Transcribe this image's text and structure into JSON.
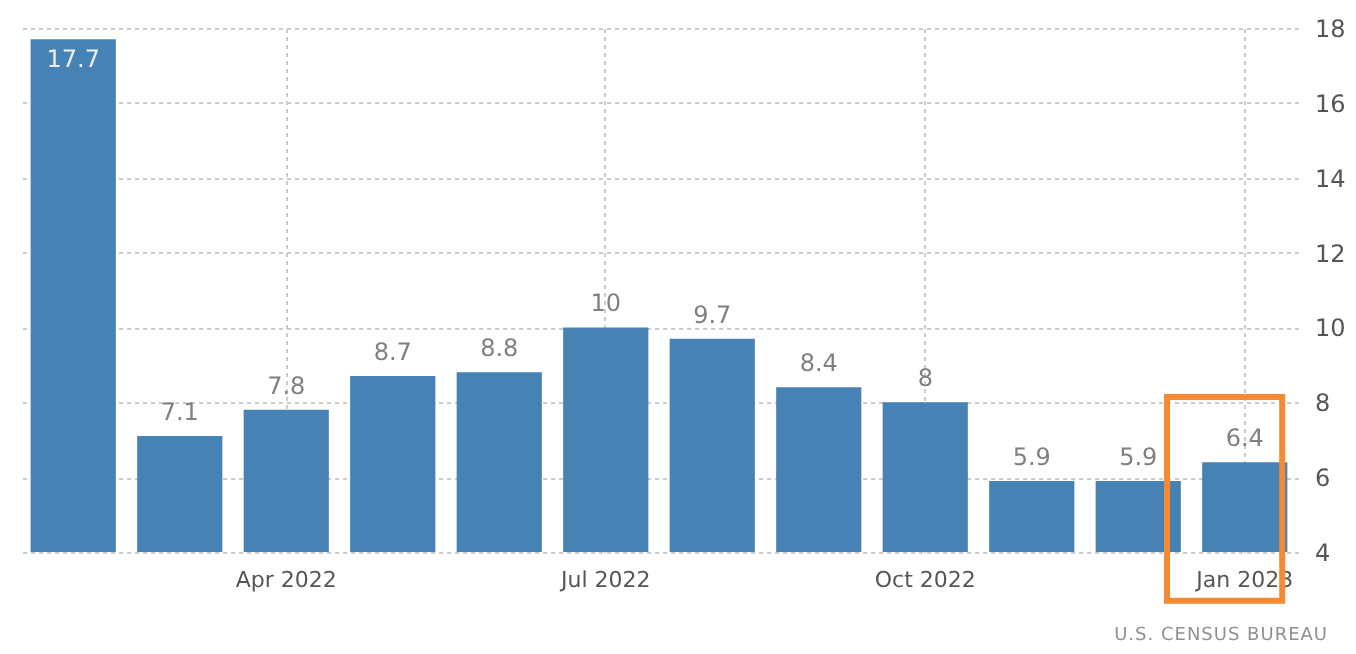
{
  "chart_data": {
    "type": "bar",
    "categories": [
      null,
      null,
      "Apr 2022",
      null,
      null,
      "Jul 2022",
      null,
      null,
      "Oct 2022",
      null,
      null,
      "Jan 2023"
    ],
    "values": [
      17.7,
      7.1,
      7.8,
      8.7,
      8.8,
      10,
      9.7,
      8.4,
      8,
      5.9,
      5.9,
      6.4
    ],
    "color": "#4682b4",
    "ylim": [
      4,
      18
    ],
    "yticks": [
      4,
      6,
      8,
      10,
      12,
      14,
      16,
      18
    ],
    "grid": true,
    "data_labels": true,
    "annotations": [
      "U.S. CENSUS BUREAU"
    ]
  }
}
